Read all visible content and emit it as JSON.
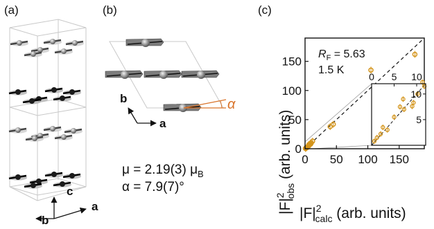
{
  "panels": {
    "a": {
      "label": "(a)",
      "axes": {
        "c": "c",
        "b": "b",
        "a": "a"
      }
    },
    "b": {
      "label": "(b)",
      "axes": {
        "b": "b",
        "a": "a"
      },
      "angle_symbol": "α",
      "mu_line": {
        "prefix": "μ = 2.19(3) μ",
        "subscript": "B"
      },
      "alpha_line": "α = 7.9(7)°"
    },
    "c": {
      "label": "(c)"
    }
  },
  "colors": {
    "data": "#d4951c",
    "guide": "#111111",
    "cell": "#c8c8c8",
    "cant": "#d9742b"
  },
  "chart_data": {
    "type": "scatter",
    "xlabel": {
      "prefix": "|F|",
      "superscript": "2",
      "subscript": "calc",
      "suffix": " (arb. units)"
    },
    "ylabel": {
      "prefix": "|F|",
      "superscript": "2",
      "subscript": "obs",
      "suffix": " (arb. units)"
    },
    "xlim": [
      0,
      190
    ],
    "ylim": [
      0,
      190
    ],
    "xticks": [
      0,
      50,
      100,
      150
    ],
    "yticks": [
      0,
      50,
      100,
      150
    ],
    "annotation_rf": {
      "prefix": "R",
      "subscript": "F",
      "suffix": " = 5.63"
    },
    "annotation_temp": "1.5 K",
    "reference_line": "y = x (dashed)",
    "series": [
      {
        "points": [
          {
            "x": 0.5,
            "y": 0.6
          },
          {
            "x": 1.5,
            "y": 1.2
          },
          {
            "x": 3,
            "y": 2
          },
          {
            "x": 4,
            "y": 3.5
          },
          {
            "x": 5.5,
            "y": 4.5
          },
          {
            "x": 6,
            "y": 7
          },
          {
            "x": 8,
            "y": 9
          },
          {
            "x": 9,
            "y": 8
          },
          {
            "x": 10,
            "y": 10
          },
          {
            "x": 12,
            "y": 13
          },
          {
            "x": 40,
            "y": 38
          },
          {
            "x": 45,
            "y": 42
          },
          {
            "x": 105,
            "y": 135
          },
          {
            "x": 175,
            "y": 162
          }
        ]
      }
    ],
    "inset": {
      "xlim": [
        0,
        12
      ],
      "ylim": [
        0,
        12
      ],
      "xticks": [
        0,
        5,
        10
      ],
      "yticks": [
        5,
        10
      ],
      "points": [
        {
          "x": 0.6,
          "y": 0.8
        },
        {
          "x": 1.2,
          "y": 1.5
        },
        {
          "x": 2.0,
          "y": 2.2
        },
        {
          "x": 2.5,
          "y": 3.5
        },
        {
          "x": 3.5,
          "y": 3.0
        },
        {
          "x": 5.0,
          "y": 5.5
        },
        {
          "x": 6.3,
          "y": 7.5
        },
        {
          "x": 7.0,
          "y": 9.0
        },
        {
          "x": 7.2,
          "y": 7.0
        },
        {
          "x": 9.0,
          "y": 7.6
        },
        {
          "x": 9.3,
          "y": 8.3
        },
        {
          "x": 10.2,
          "y": 10.0
        },
        {
          "x": 11.3,
          "y": 12.3
        },
        {
          "x": 11.7,
          "y": 11.5
        }
      ]
    }
  }
}
